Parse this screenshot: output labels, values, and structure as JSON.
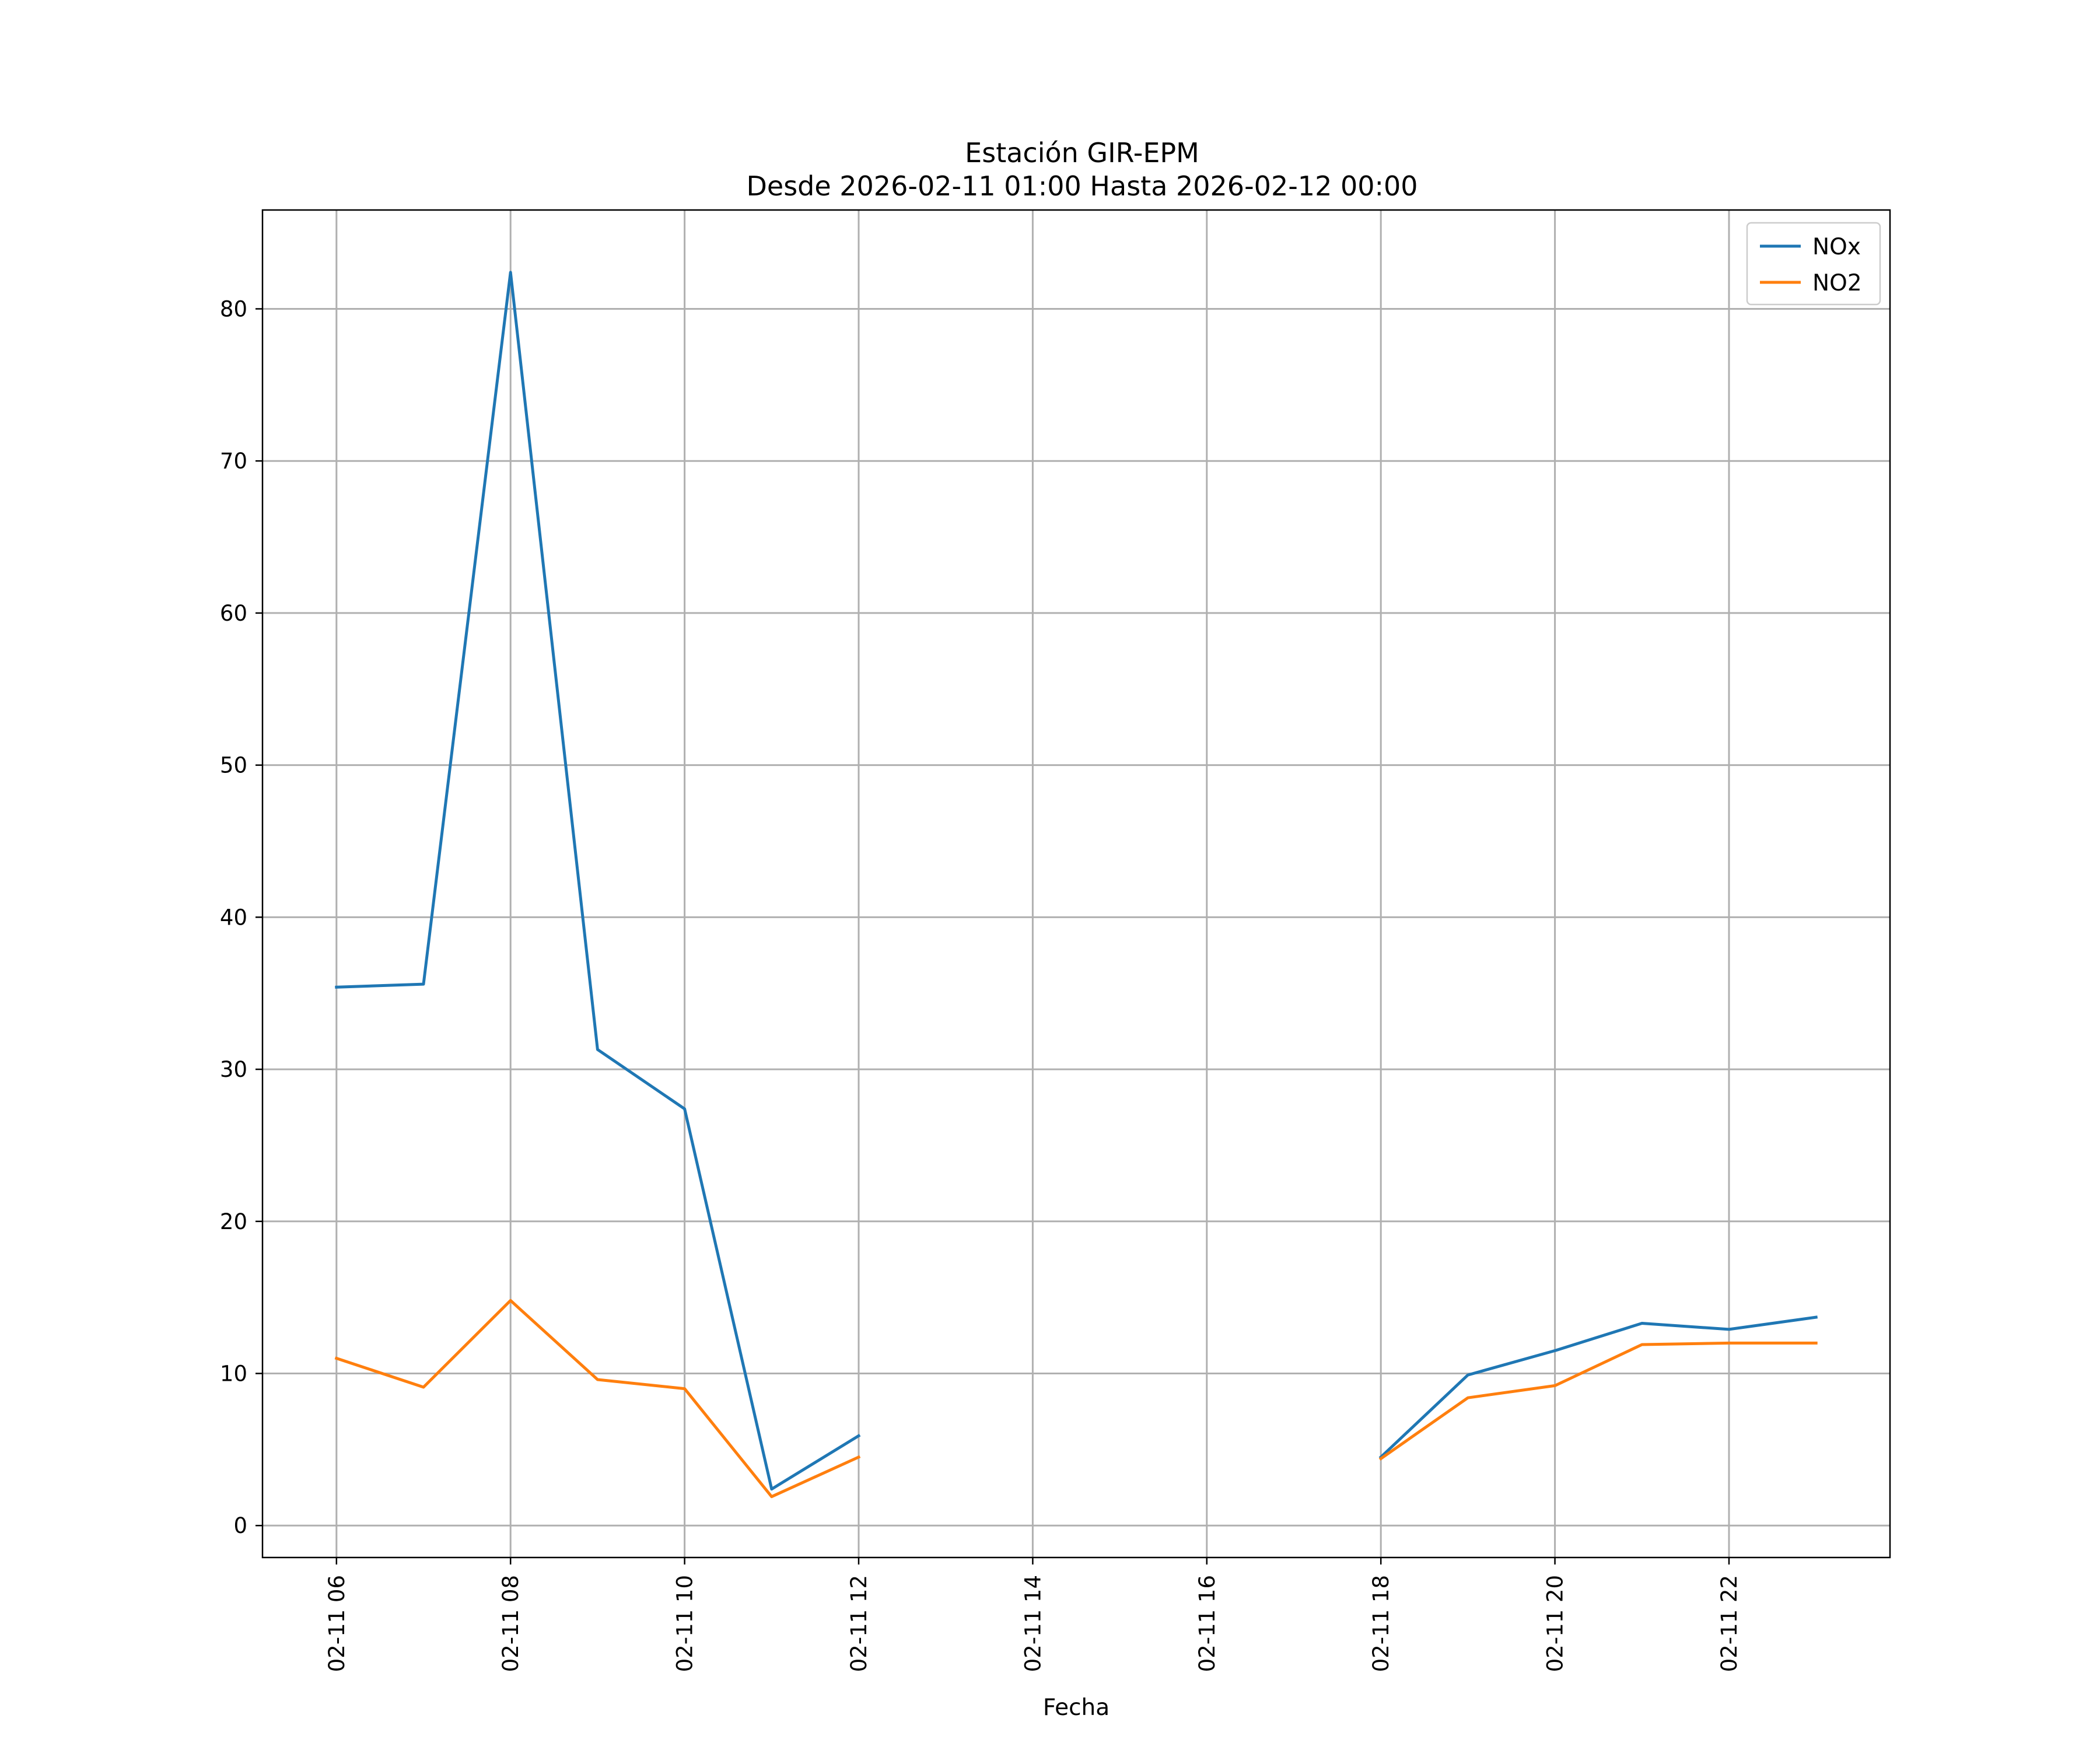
{
  "chart_data": {
    "type": "line",
    "title": "Estación GIR-EPM",
    "subtitle": "Desde 2026-02-11 01:00 Hasta 2026-02-12 00:00",
    "xlabel": "Fecha",
    "ylabel": "",
    "x_ticks": [
      "02-11 06",
      "02-11 08",
      "02-11 10",
      "02-11 12",
      "02-11 14",
      "02-11 16",
      "02-11 18",
      "02-11 20",
      "02-11 22"
    ],
    "x_tick_hours": [
      6,
      8,
      10,
      12,
      14,
      16,
      18,
      20,
      22
    ],
    "y_ticks": [
      0,
      10,
      20,
      30,
      40,
      50,
      60,
      70,
      80
    ],
    "xlim_hours": [
      5.15,
      23.85
    ],
    "ylim": [
      -2.1,
      86.5
    ],
    "grid": true,
    "legend_position": "top-right",
    "series": [
      {
        "name": "NOx",
        "color": "#1f77b4",
        "x_hours": [
          6,
          7,
          8,
          9,
          10,
          11,
          12,
          13,
          14,
          15,
          16,
          17,
          18,
          19,
          20,
          21,
          22,
          23
        ],
        "values": [
          35.4,
          35.6,
          82.4,
          31.3,
          27.4,
          2.4,
          5.9,
          null,
          null,
          null,
          null,
          null,
          4.5,
          9.9,
          11.5,
          13.3,
          12.9,
          13.7
        ]
      },
      {
        "name": "NO2",
        "color": "#ff7f0e",
        "x_hours": [
          6,
          7,
          8,
          9,
          10,
          11,
          12,
          13,
          14,
          15,
          16,
          17,
          18,
          19,
          20,
          21,
          22,
          23
        ],
        "values": [
          11.0,
          9.1,
          14.8,
          9.6,
          9.0,
          1.9,
          4.5,
          null,
          null,
          null,
          null,
          null,
          4.4,
          8.4,
          9.2,
          11.9,
          12.0,
          12.0
        ]
      }
    ]
  }
}
